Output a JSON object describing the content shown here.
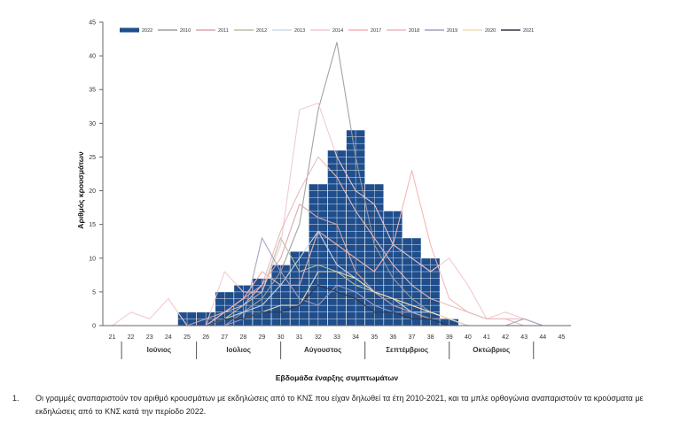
{
  "chart_data": {
    "type": "bar",
    "ylabel": "Αριθμός κρουσμάτων",
    "xlabel": "Εβδομάδα έναρξης συμπτωμάτων",
    "ylim": [
      0,
      45
    ],
    "yticks": [
      0,
      5,
      10,
      15,
      20,
      25,
      30,
      35,
      40,
      45
    ],
    "categories": [
      "21",
      "22",
      "23",
      "24",
      "25",
      "26",
      "27",
      "28",
      "29",
      "30",
      "31",
      "32",
      "33",
      "34",
      "35",
      "36",
      "37",
      "38",
      "39",
      "40",
      "41",
      "42",
      "43",
      "44",
      "45"
    ],
    "grid": false,
    "legend_position": "top",
    "months": [
      {
        "label": "Ιούνιος",
        "from_week": 22,
        "to_week": 26
      },
      {
        "label": "Ιούλιος",
        "from_week": 26,
        "to_week": 30.5
      },
      {
        "label": "Αύγουστος",
        "from_week": 30.5,
        "to_week": 35
      },
      {
        "label": "Σεπτέμβριος",
        "from_week": 35,
        "to_week": 39.5
      },
      {
        "label": "Οκτώβριος",
        "from_week": 39.5,
        "to_week": 44
      }
    ],
    "series": [
      {
        "name": "2022",
        "kind": "bar",
        "color": "#1f4e8c",
        "values": [
          0,
          0,
          0,
          0,
          2,
          2,
          5,
          6,
          7,
          9,
          11,
          21,
          26,
          29,
          21,
          17,
          13,
          10,
          1,
          0,
          0,
          0,
          0,
          0,
          0
        ]
      },
      {
        "name": "2010",
        "kind": "line",
        "color": "#9e9e9e",
        "values": [
          0,
          0,
          0,
          0,
          0,
          0,
          0,
          2,
          4,
          8,
          15,
          32,
          42,
          25,
          12,
          7,
          4,
          2,
          1,
          0,
          0,
          0,
          0,
          0,
          0
        ]
      },
      {
        "name": "2011",
        "kind": "line",
        "color": "#d9a5a8",
        "values": [
          0,
          0,
          0,
          0,
          0,
          1,
          2,
          4,
          6,
          10,
          18,
          16,
          15,
          8,
          5,
          3,
          2,
          1,
          1,
          0,
          0,
          0,
          0,
          0,
          0
        ]
      },
      {
        "name": "2012",
        "kind": "line",
        "color": "#b5c2a0",
        "values": [
          0,
          0,
          0,
          0,
          0,
          0,
          1,
          3,
          5,
          13,
          8,
          9,
          8,
          6,
          5,
          4,
          3,
          2,
          1,
          0,
          0,
          0,
          0,
          0,
          0
        ]
      },
      {
        "name": "2013",
        "kind": "line",
        "color": "#cdd9e3",
        "values": [
          0,
          0,
          0,
          0,
          0,
          0,
          1,
          2,
          3,
          6,
          10,
          14,
          9,
          7,
          5,
          4,
          2,
          2,
          1,
          0,
          0,
          0,
          0,
          0,
          0
        ]
      },
      {
        "name": "2014",
        "kind": "line",
        "color": "#f0c8cd",
        "values": [
          0,
          2,
          1,
          4,
          0,
          0,
          8,
          5,
          5,
          12,
          32,
          33,
          25,
          20,
          18,
          12,
          10,
          8,
          10,
          6,
          1,
          2,
          1,
          0,
          0
        ]
      },
      {
        "name": "2017",
        "kind": "line",
        "color": "#f3b4b1",
        "values": [
          0,
          0,
          0,
          0,
          0,
          0,
          2,
          4,
          8,
          6,
          6,
          14,
          12,
          10,
          8,
          12,
          23,
          12,
          4,
          2,
          1,
          1,
          0,
          0,
          0
        ]
      },
      {
        "name": "2018",
        "kind": "line",
        "color": "#e8b9bd",
        "values": [
          0,
          0,
          0,
          0,
          0,
          0,
          2,
          3,
          6,
          14,
          20,
          25,
          22,
          17,
          13,
          9,
          6,
          4,
          3,
          2,
          1,
          1,
          1,
          0,
          0
        ]
      },
      {
        "name": "2019",
        "kind": "line",
        "color": "#a49fbd",
        "values": [
          0,
          0,
          0,
          0,
          0,
          0,
          0,
          1,
          13,
          8,
          4,
          3,
          6,
          5,
          3,
          2,
          2,
          1,
          1,
          0,
          0,
          0,
          1,
          0,
          0
        ]
      },
      {
        "name": "2020",
        "kind": "line",
        "color": "#f1ddb3",
        "values": [
          0,
          0,
          0,
          0,
          0,
          0,
          1,
          1,
          2,
          3,
          3,
          8,
          8,
          7,
          5,
          4,
          3,
          2,
          1,
          0,
          0,
          0,
          0,
          0,
          0
        ]
      },
      {
        "name": "2021",
        "kind": "line",
        "color": "#333344",
        "values": [
          0,
          0,
          0,
          0,
          0,
          0,
          1,
          1,
          2,
          2,
          3,
          6,
          5,
          4,
          2,
          2,
          1,
          1,
          0,
          0,
          0,
          0,
          0,
          0,
          0
        ]
      }
    ]
  },
  "footnote": {
    "number": "1.",
    "text": "Οι γραμμές αναπαριστούν τον αριθμό κρουσμάτων με εκδηλώσεις από το ΚΝΣ που είχαν δηλωθεί τα έτη 2010-2021, και τα μπλε ορθογώνια αναπαριστούν τα κρούσματα με εκδηλώσεις από το ΚΝΣ κατά την περίοδο 2022."
  }
}
